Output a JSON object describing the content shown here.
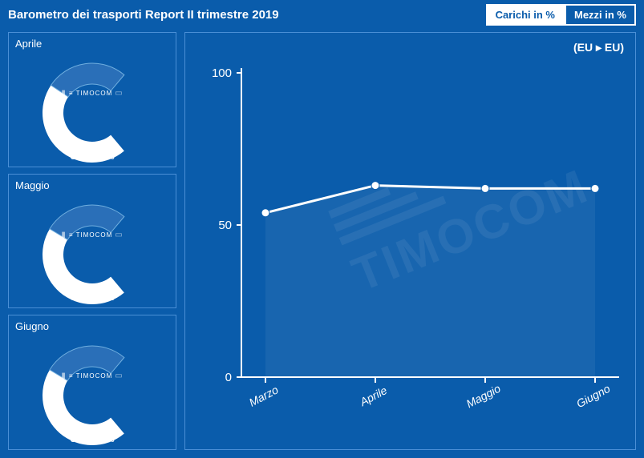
{
  "colors": {
    "background": "#0a5cab",
    "panel_border": "#4a8fd6",
    "text": "#ffffff",
    "gauge_fill": "#ffffff",
    "gauge_rest": "#2a6fb8",
    "gauge_outline": "#6faedf",
    "line_stroke": "#ffffff",
    "line_fill": "rgba(255,255,255,0.06)",
    "axis": "#ffffff",
    "tab_active_bg": "#ffffff",
    "tab_active_text": "#0a5cab"
  },
  "header": {
    "title": "Barometro dei trasporti Report II trimestre 2019",
    "tabs": [
      {
        "label": "Carichi in %",
        "active": true
      },
      {
        "label": "Mezzi in %",
        "active": false
      }
    ]
  },
  "gauges": {
    "brand": "TIMOCOM",
    "start_angle_deg": 140,
    "end_angle_deg": 400,
    "items": [
      {
        "month": "Aprile",
        "pct_a": 63,
        "pct_b": 37
      },
      {
        "month": "Maggio",
        "pct_a": 62,
        "pct_b": 38
      },
      {
        "month": "Giugno",
        "pct_a": 62,
        "pct_b": 38
      }
    ]
  },
  "chart": {
    "region_label": "(EU ▸ EU)",
    "ylim": [
      0,
      100
    ],
    "yticks": [
      0,
      50,
      100
    ],
    "x_labels": [
      "Marzo",
      "Aprile",
      "Maggio",
      "Giugno"
    ],
    "values": [
      54,
      63,
      62,
      62
    ],
    "line_width": 3,
    "marker_radius": 5,
    "marker_fill": "#ffffff",
    "marker_stroke": "#0a5cab",
    "xlabel_rotation_deg": -28,
    "watermark": "TIMOCOM",
    "tick_fontsize": 15
  }
}
